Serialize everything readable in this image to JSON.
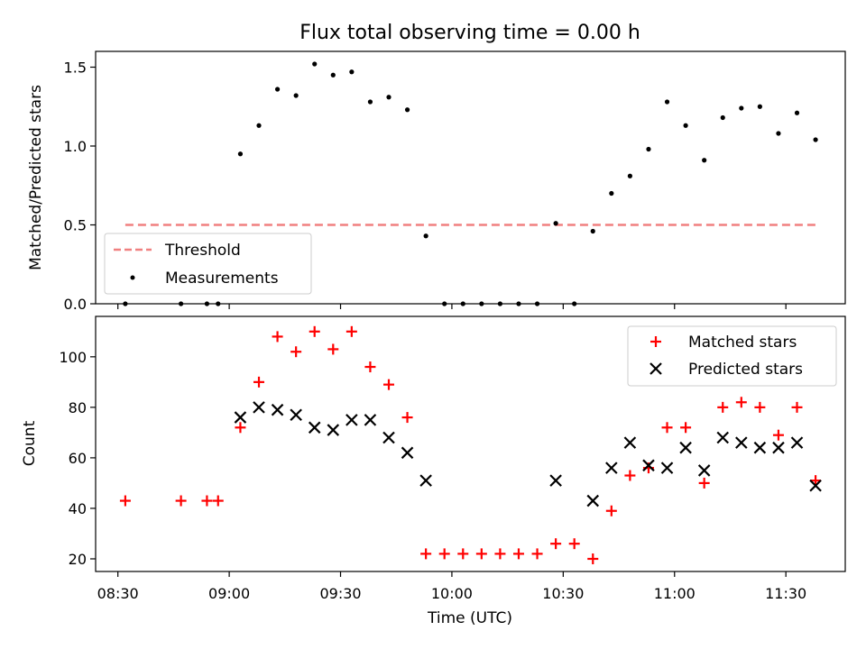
{
  "figure": {
    "title": "Flux total observing time = 0.00 h"
  },
  "chart_data": [
    {
      "type": "scatter",
      "title": "Flux total observing time = 0.00 h",
      "xlabel": "",
      "ylabel": "Matched/Predicted stars",
      "xlim": [
        "08:24",
        "11:46"
      ],
      "ylim": [
        0,
        1.6
      ],
      "yticks": [
        0.0,
        0.5,
        1.0,
        1.5
      ],
      "ytick_labels": [
        "0.0",
        "0.5",
        "1.0",
        "1.5"
      ],
      "xticks": [
        "08:30",
        "09:00",
        "09:30",
        "10:00",
        "10:30",
        "11:00",
        "11:30"
      ],
      "grid": false,
      "legend": "lower-left",
      "threshold": {
        "name": "Threshold",
        "value": 0.5,
        "x_range": [
          "08:32",
          "11:38"
        ],
        "color": "#f08080"
      },
      "series": [
        {
          "name": "Measurements",
          "marker": "dot",
          "color": "#000000",
          "points": [
            [
              "08:32",
              0.0
            ],
            [
              "08:47",
              0.0
            ],
            [
              "08:54",
              0.0
            ],
            [
              "08:57",
              0.0
            ],
            [
              "09:03",
              0.95
            ],
            [
              "09:08",
              1.13
            ],
            [
              "09:13",
              1.36
            ],
            [
              "09:18",
              1.32
            ],
            [
              "09:23",
              1.52
            ],
            [
              "09:28",
              1.45
            ],
            [
              "09:33",
              1.47
            ],
            [
              "09:38",
              1.28
            ],
            [
              "09:43",
              1.31
            ],
            [
              "09:48",
              1.23
            ],
            [
              "09:53",
              0.43
            ],
            [
              "09:58",
              0.0
            ],
            [
              "10:03",
              0.0
            ],
            [
              "10:08",
              0.0
            ],
            [
              "10:13",
              0.0
            ],
            [
              "10:18",
              0.0
            ],
            [
              "10:23",
              0.0
            ],
            [
              "10:28",
              0.51
            ],
            [
              "10:33",
              0.0
            ],
            [
              "10:38",
              0.46
            ],
            [
              "10:43",
              0.7
            ],
            [
              "10:48",
              0.81
            ],
            [
              "10:53",
              0.98
            ],
            [
              "10:58",
              1.28
            ],
            [
              "11:03",
              1.13
            ],
            [
              "11:08",
              0.91
            ],
            [
              "11:13",
              1.18
            ],
            [
              "11:18",
              1.24
            ],
            [
              "11:23",
              1.25
            ],
            [
              "11:28",
              1.08
            ],
            [
              "11:33",
              1.21
            ],
            [
              "11:38",
              1.04
            ]
          ]
        }
      ]
    },
    {
      "type": "scatter",
      "title": "",
      "xlabel": "Time (UTC)",
      "ylabel": "Count",
      "xlim": [
        "08:24",
        "11:46"
      ],
      "ylim": [
        15,
        116
      ],
      "yticks": [
        20,
        40,
        60,
        80,
        100
      ],
      "ytick_labels": [
        "20",
        "40",
        "60",
        "80",
        "100"
      ],
      "xticks": [
        "08:30",
        "09:00",
        "09:30",
        "10:00",
        "10:30",
        "11:00",
        "11:30"
      ],
      "grid": false,
      "legend": "top-right",
      "series": [
        {
          "name": "Matched stars",
          "marker": "plus",
          "color": "#ff0000",
          "points": [
            [
              "08:32",
              43
            ],
            [
              "08:47",
              43
            ],
            [
              "08:54",
              43
            ],
            [
              "08:57",
              43
            ],
            [
              "09:03",
              72
            ],
            [
              "09:08",
              90
            ],
            [
              "09:13",
              108
            ],
            [
              "09:18",
              102
            ],
            [
              "09:23",
              110
            ],
            [
              "09:28",
              103
            ],
            [
              "09:33",
              110
            ],
            [
              "09:38",
              96
            ],
            [
              "09:43",
              89
            ],
            [
              "09:48",
              76
            ],
            [
              "09:53",
              22
            ],
            [
              "09:58",
              22
            ],
            [
              "10:03",
              22
            ],
            [
              "10:08",
              22
            ],
            [
              "10:13",
              22
            ],
            [
              "10:18",
              22
            ],
            [
              "10:23",
              22
            ],
            [
              "10:28",
              26
            ],
            [
              "10:33",
              26
            ],
            [
              "10:38",
              20
            ],
            [
              "10:43",
              39
            ],
            [
              "10:48",
              53
            ],
            [
              "10:53",
              56
            ],
            [
              "10:58",
              72
            ],
            [
              "11:03",
              72
            ],
            [
              "11:08",
              50
            ],
            [
              "11:13",
              80
            ],
            [
              "11:18",
              82
            ],
            [
              "11:23",
              80
            ],
            [
              "11:28",
              69
            ],
            [
              "11:33",
              80
            ],
            [
              "11:38",
              51
            ]
          ]
        },
        {
          "name": "Predicted stars",
          "marker": "x",
          "color": "#000000",
          "points": [
            [
              "09:03",
              76
            ],
            [
              "09:08",
              80
            ],
            [
              "09:13",
              79
            ],
            [
              "09:18",
              77
            ],
            [
              "09:23",
              72
            ],
            [
              "09:28",
              71
            ],
            [
              "09:33",
              75
            ],
            [
              "09:38",
              75
            ],
            [
              "09:43",
              68
            ],
            [
              "09:48",
              62
            ],
            [
              "09:53",
              51
            ],
            [
              "10:28",
              51
            ],
            [
              "10:38",
              43
            ],
            [
              "10:43",
              56
            ],
            [
              "10:48",
              66
            ],
            [
              "10:53",
              57
            ],
            [
              "10:58",
              56
            ],
            [
              "11:03",
              64
            ],
            [
              "11:08",
              55
            ],
            [
              "11:13",
              68
            ],
            [
              "11:18",
              66
            ],
            [
              "11:23",
              64
            ],
            [
              "11:28",
              64
            ],
            [
              "11:33",
              66
            ],
            [
              "11:38",
              49
            ]
          ]
        }
      ]
    }
  ]
}
